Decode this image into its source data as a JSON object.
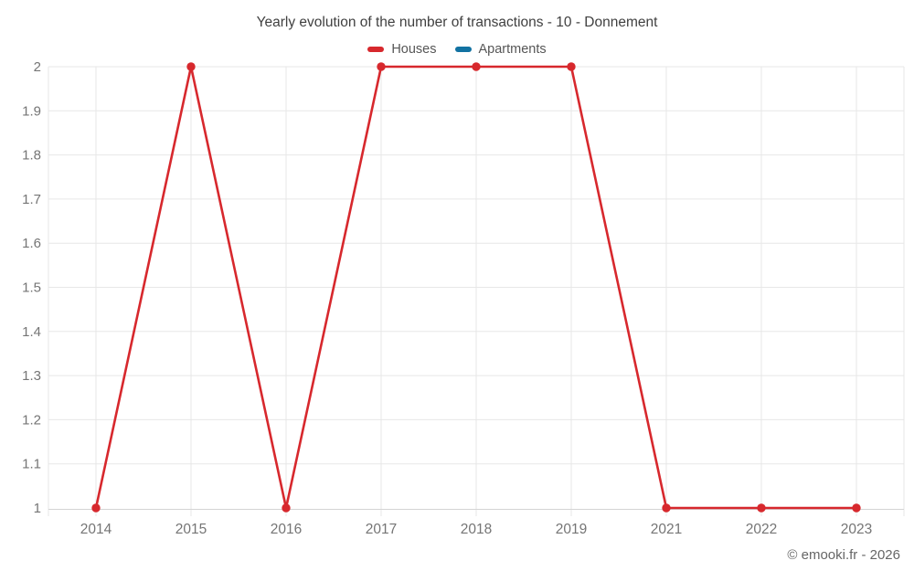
{
  "title": "Yearly evolution of the number of transactions - 10 - Donnement",
  "credit": "© emooki.fr - 2026",
  "legend": [
    {
      "label": "Houses",
      "color": "#d7282d"
    },
    {
      "label": "Apartments",
      "color": "#1272a2"
    }
  ],
  "colors": {
    "houses_red": "#d7282d",
    "apartments_blue": "#1272a2",
    "grid": "#e7e7e7",
    "axis": "#d4d4d4",
    "tick_label": "#757575",
    "title_text": "#404040"
  },
  "chart_data": {
    "type": "line",
    "title": "Yearly evolution of the number of transactions - 10 - Donnement",
    "categories": [
      "2014",
      "2015",
      "2016",
      "2017",
      "2018",
      "2019",
      "2021",
      "2022",
      "2023"
    ],
    "series": [
      {
        "name": "Houses",
        "color": "#d7282d",
        "values": [
          1,
          2,
          1,
          2,
          2,
          2,
          1,
          1,
          1
        ]
      },
      {
        "name": "Apartments",
        "color": "#1272a2",
        "values": []
      }
    ],
    "xlabel": "",
    "ylabel": "",
    "ylim": [
      1,
      2
    ],
    "ytick_step": 0.1,
    "ytick_labels": [
      "1",
      "1.1",
      "1.2",
      "1.3",
      "1.4",
      "1.5",
      "1.6",
      "1.7",
      "1.8",
      "1.9",
      "2"
    ],
    "grid": true,
    "legend_position": "top",
    "marker": "circle"
  }
}
